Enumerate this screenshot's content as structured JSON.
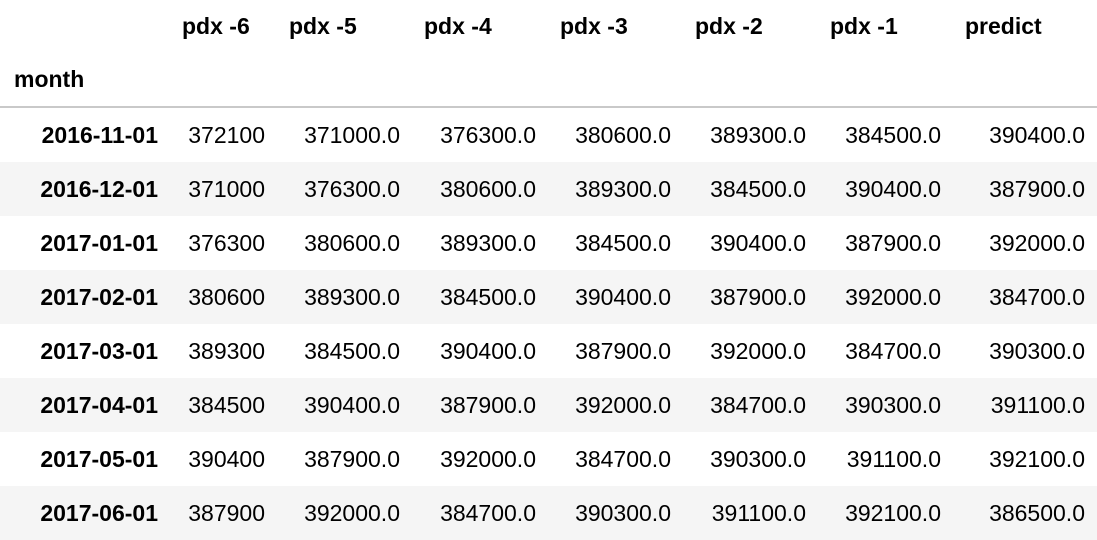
{
  "columns": [
    "pdx -6",
    "pdx -5",
    "pdx -4",
    "pdx -3",
    "pdx -2",
    "pdx -1",
    "predict"
  ],
  "index_name": "month",
  "rows": [
    {
      "index": "2016-11-01",
      "values": [
        "372100",
        "371000.0",
        "376300.0",
        "380600.0",
        "389300.0",
        "384500.0",
        "390400.0"
      ]
    },
    {
      "index": "2016-12-01",
      "values": [
        "371000",
        "376300.0",
        "380600.0",
        "389300.0",
        "384500.0",
        "390400.0",
        "387900.0"
      ]
    },
    {
      "index": "2017-01-01",
      "values": [
        "376300",
        "380600.0",
        "389300.0",
        "384500.0",
        "390400.0",
        "387900.0",
        "392000.0"
      ]
    },
    {
      "index": "2017-02-01",
      "values": [
        "380600",
        "389300.0",
        "384500.0",
        "390400.0",
        "387900.0",
        "392000.0",
        "384700.0"
      ]
    },
    {
      "index": "2017-03-01",
      "values": [
        "389300",
        "384500.0",
        "390400.0",
        "387900.0",
        "392000.0",
        "384700.0",
        "390300.0"
      ]
    },
    {
      "index": "2017-04-01",
      "values": [
        "384500",
        "390400.0",
        "387900.0",
        "392000.0",
        "384700.0",
        "390300.0",
        "391100.0"
      ]
    },
    {
      "index": "2017-05-01",
      "values": [
        "390400",
        "387900.0",
        "392000.0",
        "384700.0",
        "390300.0",
        "391100.0",
        "392100.0"
      ]
    },
    {
      "index": "2017-06-01",
      "values": [
        "387900",
        "392000.0",
        "384700.0",
        "390300.0",
        "391100.0",
        "392100.0",
        "386500.0"
      ]
    }
  ]
}
